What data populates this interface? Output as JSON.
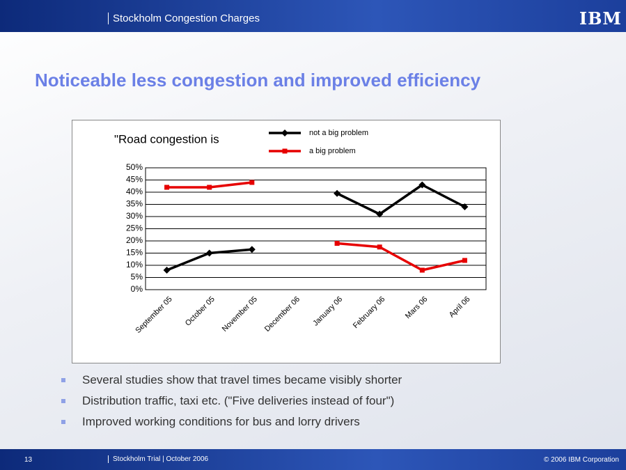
{
  "header": {
    "title": "Stockholm Congestion Charges",
    "logo": "IBM"
  },
  "title": "Noticeable less congestion and improved efficiency",
  "chart_data": {
    "type": "line",
    "title": "\"Road congestion is",
    "categories": [
      "September 05",
      "October 05",
      "November 05",
      "December 06",
      "January 06",
      "February 06",
      "Mars 06",
      "April 06"
    ],
    "series": [
      {
        "name": "not a big problem",
        "color": "#000000",
        "values": [
          8,
          15,
          16.5,
          null,
          39.5,
          31,
          43,
          34
        ]
      },
      {
        "name": "a big problem",
        "color": "#e60000",
        "values": [
          42,
          42,
          44,
          null,
          19,
          17.5,
          8,
          12
        ]
      }
    ],
    "ylim": [
      0,
      50
    ],
    "yticks": [
      {
        "value": 0,
        "label": "0%"
      },
      {
        "value": 5,
        "label": "5%"
      },
      {
        "value": 10,
        "label": "10%"
      },
      {
        "value": 15,
        "label": "15%"
      },
      {
        "value": 20,
        "label": "20%"
      },
      {
        "value": 25,
        "label": "25%"
      },
      {
        "value": 30,
        "label": "30%"
      },
      {
        "value": 35,
        "label": "35%"
      },
      {
        "value": 40,
        "label": "40%"
      },
      {
        "value": 45,
        "label": "45%"
      },
      {
        "value": 50,
        "label": "50%"
      }
    ],
    "grid": true
  },
  "bullets": [
    "Several studies show that travel times became visibly shorter",
    "Distribution traffic, taxi etc. (\"Five deliveries instead of four\")",
    "Improved working conditions for bus and lorry drivers"
  ],
  "footer": {
    "page": "13",
    "text": "Stockholm Trial | October 2006",
    "copyright": "© 2006 IBM Corporation"
  }
}
